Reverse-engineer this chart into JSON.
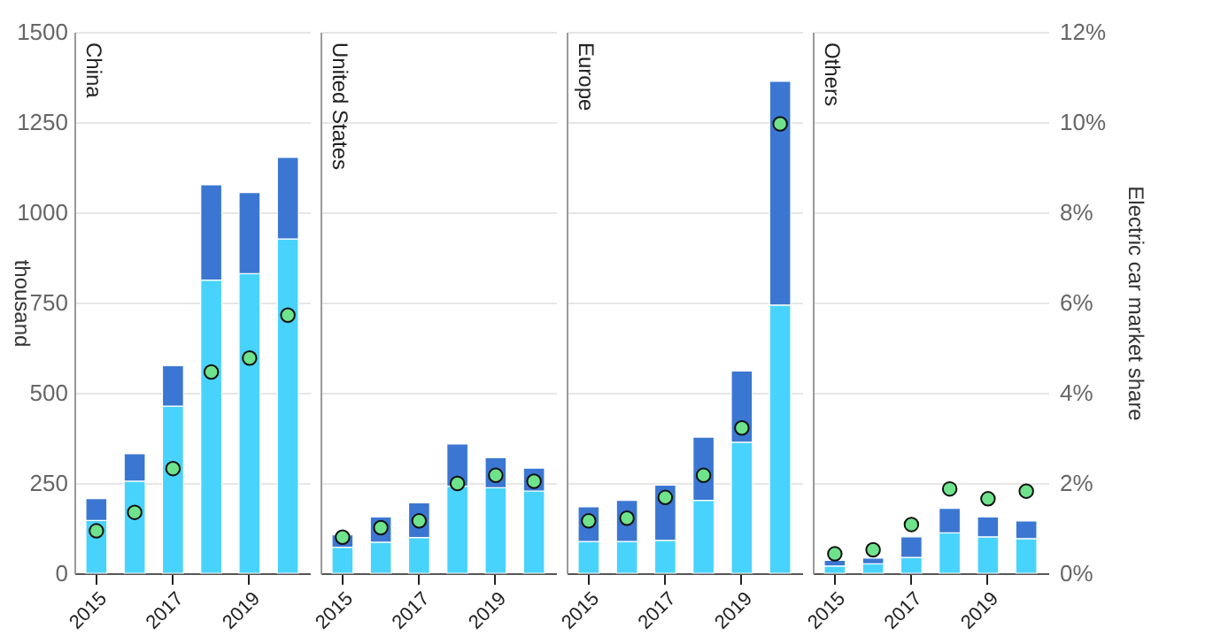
{
  "chart_data": [
    {
      "type": "bar",
      "title": "China",
      "stacked": true,
      "categories": [
        "2015",
        null,
        "2017",
        null,
        "2019",
        null
      ],
      "series": [
        {
          "color": "#48d3fd",
          "values": [
            146,
            255,
            463,
            812,
            830,
            926
          ]
        },
        {
          "color": "#3b77d2",
          "values": [
            61,
            76,
            112,
            264,
            225,
            226
          ]
        },
        {
          "type": "scatter",
          "axis": "y2",
          "color": "#6ee38c",
          "values": [
            0.94,
            1.35,
            2.32,
            4.46,
            4.77,
            5.72
          ]
        }
      ],
      "ylim": [
        0,
        1500
      ],
      "yticks": [
        0,
        250,
        500,
        750,
        1000,
        1250,
        1500
      ],
      "ylabel": "thousand",
      "y2lim": [
        0,
        12
      ],
      "grid": true,
      "marker": "circle"
    },
    {
      "type": "bar",
      "title": "United States",
      "stacked": true,
      "categories": [
        "2015",
        null,
        "2017",
        null,
        "2019",
        null
      ],
      "series": [
        {
          "color": "#48d3fd",
          "values": [
            72,
            86,
            99,
            241,
            237,
            228
          ]
        },
        {
          "color": "#3b77d2",
          "values": [
            34,
            70,
            96,
            117,
            83,
            63
          ]
        },
        {
          "type": "scatter",
          "axis": "y2",
          "color": "#6ee38c",
          "values": [
            0.8,
            1.01,
            1.16,
            1.99,
            2.17,
            2.04
          ]
        }
      ],
      "ylim": [
        0,
        1500
      ],
      "yticks": [
        0,
        250,
        500,
        750,
        1000,
        1250,
        1500
      ],
      "y2lim": [
        0,
        12
      ],
      "grid": true,
      "marker": "circle",
      "tick_labels": "x"
    },
    {
      "type": "bar",
      "title": "Europe",
      "stacked": true,
      "categories": [
        "2015",
        null,
        "2017",
        null,
        "2019",
        null
      ],
      "series": [
        {
          "color": "#48d3fd",
          "values": [
            88,
            88,
            91,
            202,
            363,
            743
          ]
        },
        {
          "color": "#3b77d2",
          "values": [
            96,
            114,
            153,
            175,
            197,
            620
          ]
        },
        {
          "type": "scatter",
          "axis": "y2",
          "color": "#6ee38c",
          "values": [
            1.16,
            1.22,
            1.68,
            2.17,
            3.22,
            9.96
          ]
        }
      ],
      "ylim": [
        0,
        1500
      ],
      "yticks": [
        0,
        250,
        500,
        750,
        1000,
        1250,
        1500
      ],
      "y2lim": [
        0,
        12
      ],
      "grid": true,
      "marker": "circle",
      "tick_labels": "x"
    },
    {
      "type": "bar",
      "title": "Others",
      "stacked": true,
      "categories": [
        "2015",
        null,
        "2017",
        null,
        "2019",
        null
      ],
      "series": [
        {
          "color": "#48d3fd",
          "values": [
            20,
            26,
            44,
            112,
            101,
            96
          ]
        },
        {
          "color": "#3b77d2",
          "values": [
            16,
            16,
            57,
            68,
            55,
            49
          ]
        },
        {
          "type": "scatter",
          "axis": "y2",
          "color": "#6ee38c",
          "values": [
            0.43,
            0.52,
            1.08,
            1.87,
            1.65,
            1.82
          ]
        }
      ],
      "ylim": [
        0,
        1500
      ],
      "y2lim": [
        0,
        12
      ],
      "y2ticks": [
        {
          "value": 0,
          "label": "0%"
        },
        {
          "value": 2,
          "label": "2%"
        },
        {
          "value": 4,
          "label": "4%"
        },
        {
          "value": 6,
          "label": "6%"
        },
        {
          "value": 8,
          "label": "8%"
        },
        {
          "value": 10,
          "label": "10%"
        },
        {
          "value": 12,
          "label": "12%"
        }
      ],
      "y2label": "Electric car market share",
      "grid": true,
      "marker": "circle"
    }
  ]
}
